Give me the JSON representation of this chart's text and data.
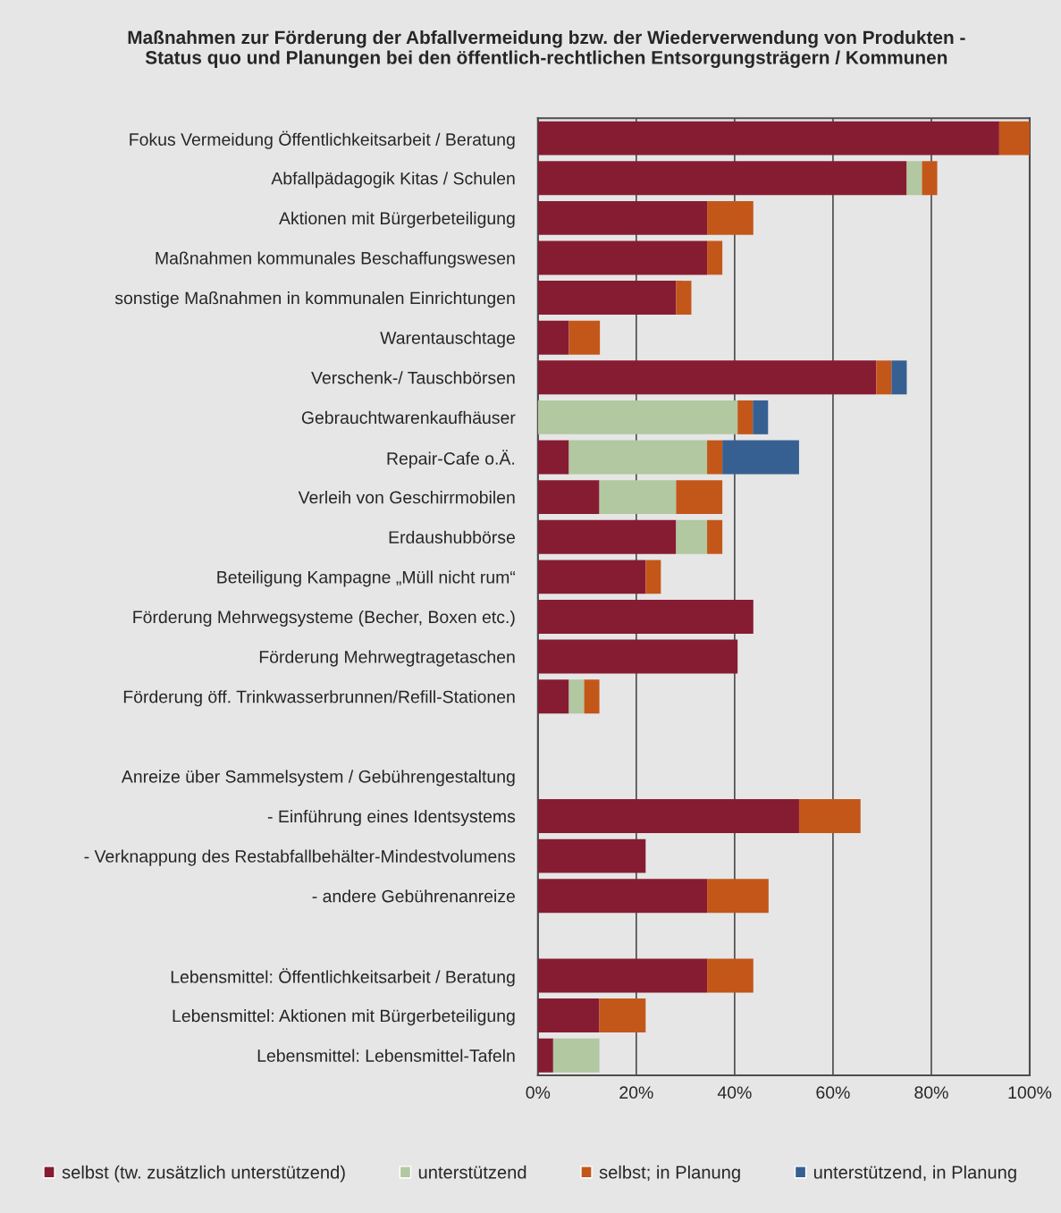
{
  "chart_data": {
    "type": "bar",
    "orientation": "horizontal",
    "stacked": true,
    "title": "Maßnahmen zur Förderung der Abfallvermeidung bzw. der Wiederverwendung von Produkten -\nStatus quo und Planungen bei den öffentlich-rechtlichen Entsorgungsträgern / Kommunen",
    "categories": [
      "Fokus Vermeidung Öffentlichkeitsarbeit / Beratung",
      "Abfallpädagogik Kitas / Schulen",
      "Aktionen mit Bürgerbeteiligung",
      "Maßnahmen kommunales Beschaffungswesen",
      "sonstige Maßnahmen in kommunalen Einrichtungen",
      "Warentauschtage",
      "Verschenk-/ Tauschbörsen",
      "Gebrauchtwarenkaufhäuser",
      "Repair-Cafe o.Ä.",
      "Verleih von Geschirrmobilen",
      "Erdaushubbörse",
      "Beteiligung Kampagne „Müll nicht rum“",
      "Förderung Mehrwegsysteme (Becher, Boxen etc.)",
      "Förderung Mehrwegtragetaschen",
      "Förderung öff. Trinkwasserbrunnen/Refill-Stationen",
      null,
      "Anreize über Sammelsystem / Gebührengestaltung",
      "- Einführung eines Identsystems",
      "- Verknappung des Restabfallbehälter-Mindestvolumens",
      "- andere Gebührenanreize",
      null,
      "Lebensmittel: Öffentlichkeitsarbeit / Beratung",
      "Lebensmittel: Aktionen mit Bürgerbeteiligung",
      "Lebensmittel: Lebensmittel-Tafeln"
    ],
    "series": [
      {
        "name": "selbst (tw. zusätzlich unterstützend)",
        "color": "#861c32",
        "values": [
          93.8,
          75,
          34.4,
          34.4,
          28.1,
          6.3,
          68.8,
          null,
          6.3,
          12.5,
          28.1,
          21.9,
          43.8,
          40.6,
          6.3,
          null,
          null,
          53.1,
          21.9,
          34.4,
          null,
          34.4,
          12.5,
          3.1
        ]
      },
      {
        "name": "unterstützend",
        "color": "#b2c8a0",
        "values": [
          null,
          3.1,
          null,
          null,
          null,
          null,
          null,
          40.6,
          28.1,
          15.6,
          6.3,
          null,
          null,
          null,
          3.1,
          null,
          null,
          null,
          null,
          null,
          null,
          null,
          null,
          9.4
        ]
      },
      {
        "name": "selbst; in Planung",
        "color": "#c3571a",
        "values": [
          6.3,
          3.1,
          9.4,
          3.1,
          3.1,
          6.3,
          3.1,
          3.1,
          3.1,
          9.4,
          3.1,
          3.1,
          null,
          null,
          3.1,
          null,
          null,
          12.5,
          null,
          12.5,
          null,
          9.4,
          9.4,
          null
        ]
      },
      {
        "name": "unterstützend, in Planung",
        "color": "#376092",
        "values": [
          null,
          null,
          null,
          null,
          null,
          null,
          3.1,
          3.1,
          15.6,
          null,
          null,
          null,
          null,
          null,
          null,
          null,
          null,
          null,
          null,
          null,
          null,
          null,
          null,
          null
        ]
      }
    ],
    "xlim": [
      0,
      100
    ],
    "xticks": [
      {
        "value": 0,
        "label": "0%"
      },
      {
        "value": 20,
        "label": "20%"
      },
      {
        "value": 40,
        "label": "40%"
      },
      {
        "value": 60,
        "label": "60%"
      },
      {
        "value": 80,
        "label": "80%"
      },
      {
        "value": 100,
        "label": "100%"
      }
    ],
    "grid": "x",
    "legend": "bottom"
  }
}
